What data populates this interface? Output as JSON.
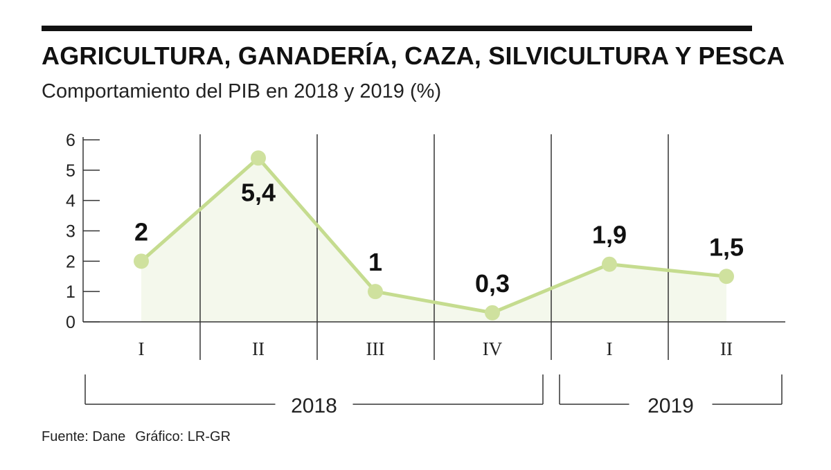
{
  "header": {
    "title": "AGRICULTURA, GANADERÍA, CAZA, SILVICULTURA Y PESCA",
    "subtitle": "Comportamiento del PIB en 2018 y 2019 (%)"
  },
  "footer": {
    "source": "Fuente: Dane",
    "credit": "Gráfico: LR-GR"
  },
  "colors": {
    "line": "#c5dc8f",
    "marker": "#cfe19e",
    "area": "#f4f8ec",
    "axis": "#333333",
    "text": "#111111"
  },
  "chart_data": {
    "type": "line",
    "title": "AGRICULTURA, GANADERÍA, CAZA, SILVICULTURA Y PESCA",
    "subtitle": "Comportamiento del PIB en 2018 y 2019 (%)",
    "xlabel": "",
    "ylabel": "",
    "categories": [
      "I",
      "II",
      "III",
      "IV",
      "I",
      "II"
    ],
    "groups": [
      {
        "label": "2018",
        "start": 0,
        "end": 3
      },
      {
        "label": "2019",
        "start": 4,
        "end": 5
      }
    ],
    "series": [
      {
        "name": "PIB",
        "values": [
          2,
          5.4,
          1,
          0.3,
          1.9,
          1.5
        ],
        "labels": [
          "2",
          "5,4",
          "1",
          "0,3",
          "1,9",
          "1,5"
        ]
      }
    ],
    "ylim": [
      0,
      6
    ],
    "yticks": [
      0,
      1,
      2,
      3,
      4,
      5,
      6
    ],
    "grid": false,
    "legend": "none"
  }
}
